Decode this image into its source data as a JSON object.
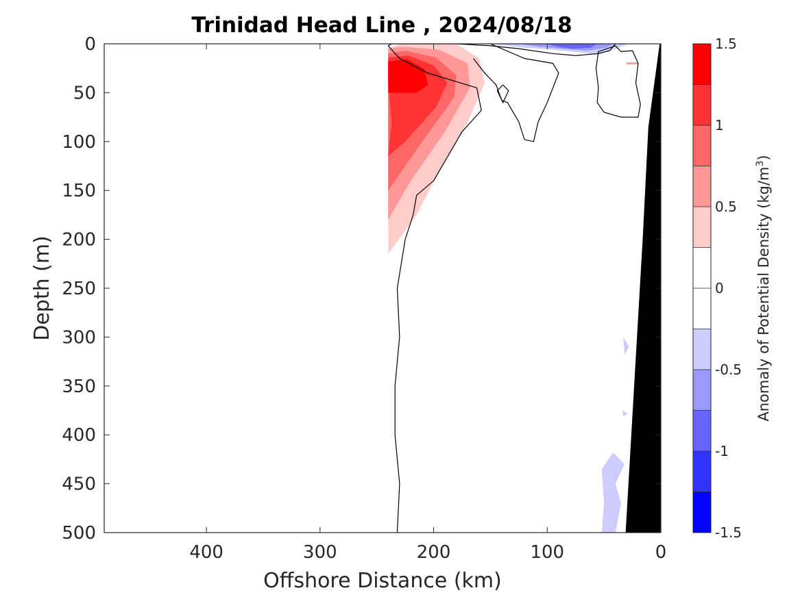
{
  "chart_data": {
    "type": "heatmap",
    "title": "Trinidad Head Line , 2024/08/18",
    "xlabel": "Offshore Distance (km)",
    "ylabel": "Depth (m)",
    "xlim": [
      490,
      0
    ],
    "ylim": [
      0,
      500
    ],
    "x_ticks": [
      400,
      300,
      200,
      100,
      0
    ],
    "y_ticks": [
      0,
      50,
      100,
      150,
      200,
      250,
      300,
      350,
      400,
      450,
      500
    ],
    "colorbar": {
      "label": "Anomaly of Potential Density (kg/m",
      "label_superscript": "3",
      "label_suffix": ")",
      "range": [
        -1.5,
        1.5
      ],
      "ticks": [
        -1.5,
        -1,
        -0.5,
        0,
        0.5,
        1,
        1.5
      ],
      "levels": [
        {
          "from": 1.25,
          "to": 1.5,
          "color": "#ff0000"
        },
        {
          "from": 1.0,
          "to": 1.25,
          "color": "#ff3333"
        },
        {
          "from": 0.75,
          "to": 1.0,
          "color": "#ff6666"
        },
        {
          "from": 0.5,
          "to": 0.75,
          "color": "#ff9999"
        },
        {
          "from": 0.25,
          "to": 0.5,
          "color": "#ffcccc"
        },
        {
          "from": 0.0,
          "to": 0.25,
          "color": "#ffffff"
        },
        {
          "from": -0.25,
          "to": 0.0,
          "color": "#ffffff"
        },
        {
          "from": -0.5,
          "to": -0.25,
          "color": "#ccccff"
        },
        {
          "from": -0.75,
          "to": -0.5,
          "color": "#9999ff"
        },
        {
          "from": -1.0,
          "to": -0.75,
          "color": "#6666ff"
        },
        {
          "from": -1.25,
          "to": -1.0,
          "color": "#3333ff"
        },
        {
          "from": -1.5,
          "to": -1.25,
          "color": "#0000ff"
        }
      ]
    },
    "contour_regions": [
      {
        "name": "positive-anomaly-0.25",
        "level": 0.375,
        "color": "#ffcccc",
        "points": [
          [
            240,
            5
          ],
          [
            230,
            0
          ],
          [
            180,
            0
          ],
          [
            160,
            15
          ],
          [
            155,
            40
          ],
          [
            170,
            80
          ],
          [
            195,
            130
          ],
          [
            215,
            175
          ],
          [
            240,
            215
          ]
        ]
      },
      {
        "name": "positive-anomaly-0.50",
        "level": 0.625,
        "color": "#ff9999",
        "points": [
          [
            240,
            5
          ],
          [
            228,
            3
          ],
          [
            195,
            6
          ],
          [
            170,
            20
          ],
          [
            168,
            45
          ],
          [
            190,
            90
          ],
          [
            220,
            140
          ],
          [
            240,
            180
          ]
        ]
      },
      {
        "name": "positive-anomaly-0.75",
        "level": 0.875,
        "color": "#ff6666",
        "points": [
          [
            240,
            10
          ],
          [
            225,
            7
          ],
          [
            198,
            14
          ],
          [
            180,
            32
          ],
          [
            182,
            55
          ],
          [
            210,
            100
          ],
          [
            240,
            150
          ]
        ]
      },
      {
        "name": "positive-anomaly-1.00",
        "level": 1.125,
        "color": "#ff3333",
        "points": [
          [
            240,
            14
          ],
          [
            222,
            12
          ],
          [
            200,
            22
          ],
          [
            188,
            40
          ],
          [
            198,
            65
          ],
          [
            225,
            100
          ],
          [
            240,
            115
          ],
          [
            237,
            80
          ],
          [
            240,
            40
          ]
        ]
      },
      {
        "name": "positive-anomaly-1.25",
        "level": 1.375,
        "color": "#ff0000",
        "points": [
          [
            240,
            18
          ],
          [
            223,
            16
          ],
          [
            208,
            26
          ],
          [
            205,
            42
          ],
          [
            215,
            50
          ],
          [
            232,
            50
          ],
          [
            240,
            50
          ]
        ]
      },
      {
        "name": "negative-anomaly-surface-0.25",
        "level": -0.375,
        "color": "#ccccff",
        "points": [
          [
            150,
            0
          ],
          [
            120,
            4
          ],
          [
            95,
            6
          ],
          [
            70,
            9
          ],
          [
            55,
            11
          ],
          [
            40,
            5
          ],
          [
            28,
            0
          ]
        ]
      },
      {
        "name": "negative-anomaly-surface-0.50",
        "level": -0.625,
        "color": "#9999ff",
        "points": [
          [
            125,
            0
          ],
          [
            108,
            3
          ],
          [
            88,
            5
          ],
          [
            65,
            7
          ],
          [
            48,
            4
          ],
          [
            42,
            0
          ]
        ]
      },
      {
        "name": "negative-anomaly-surface-0.75",
        "level": -0.875,
        "color": "#6666ff",
        "points": [
          [
            100,
            0
          ],
          [
            92,
            3
          ],
          [
            78,
            5
          ],
          [
            62,
            4
          ],
          [
            56,
            0
          ]
        ]
      },
      {
        "name": "negative-anomaly-deep-0.25-a",
        "level": -0.375,
        "color": "#ccccff",
        "points": [
          [
            52,
            500
          ],
          [
            50,
            470
          ],
          [
            52,
            435
          ],
          [
            42,
            418
          ],
          [
            32,
            430
          ],
          [
            40,
            450
          ],
          [
            35,
            470
          ],
          [
            40,
            500
          ]
        ]
      },
      {
        "name": "negative-anomaly-deep-0.25-b",
        "level": -0.375,
        "color": "#ccccff",
        "points": [
          [
            33,
            300
          ],
          [
            28,
            310
          ],
          [
            32,
            318
          ]
        ]
      },
      {
        "name": "negative-anomaly-deep-0.25-c",
        "level": -0.375,
        "color": "#ccccff",
        "points": [
          [
            34,
            375
          ],
          [
            29,
            378
          ],
          [
            33,
            381
          ]
        ]
      },
      {
        "name": "positive-anomaly-nearshore-dot",
        "level": 0.375,
        "color": "#ff9999",
        "points": [
          [
            30,
            19
          ],
          [
            20,
            19
          ],
          [
            20,
            21
          ],
          [
            30,
            21
          ]
        ]
      }
    ],
    "zero_contours": [
      {
        "name": "zero-contour-main",
        "points": [
          [
            240,
            2
          ],
          [
            237,
            0
          ],
          [
            235,
            0
          ],
          [
            180,
            0
          ],
          [
            150,
            2
          ],
          [
            125,
            5
          ],
          [
            95,
            10
          ],
          [
            75,
            12
          ],
          [
            55,
            10
          ],
          [
            45,
            7
          ],
          [
            40,
            0
          ]
        ]
      },
      {
        "name": "zero-contour-offshore",
        "points": [
          [
            240,
            2
          ],
          [
            230,
            15
          ],
          [
            205,
            30
          ],
          [
            162,
            45
          ],
          [
            158,
            68
          ],
          [
            175,
            90
          ],
          [
            190,
            120
          ],
          [
            200,
            140
          ],
          [
            215,
            155
          ],
          [
            218,
            175
          ],
          [
            225,
            200
          ],
          [
            232,
            250
          ],
          [
            230,
            300
          ],
          [
            234,
            350
          ],
          [
            234,
            400
          ],
          [
            230,
            450
          ],
          [
            232,
            500
          ]
        ]
      },
      {
        "name": "zero-contour-eastern-lobe",
        "points": [
          [
            150,
            0
          ],
          [
            120,
            15
          ],
          [
            95,
            20
          ],
          [
            90,
            30
          ],
          [
            100,
            60
          ],
          [
            108,
            80
          ],
          [
            112,
            100
          ],
          [
            120,
            98
          ],
          [
            125,
            80
          ],
          [
            135,
            60
          ],
          [
            140,
            58
          ],
          [
            145,
            42
          ],
          [
            155,
            30
          ],
          [
            165,
            15
          ]
        ]
      },
      {
        "name": "zero-contour-nearshore-loop",
        "points": [
          [
            40,
            2
          ],
          [
            55,
            8
          ],
          [
            57,
            25
          ],
          [
            55,
            45
          ],
          [
            56,
            60
          ],
          [
            50,
            70
          ],
          [
            35,
            75
          ],
          [
            20,
            75
          ],
          [
            18,
            62
          ],
          [
            22,
            40
          ],
          [
            20,
            20
          ],
          [
            25,
            7
          ],
          [
            35,
            8
          ],
          [
            40,
            2
          ]
        ]
      },
      {
        "name": "zero-contour-diamond",
        "points": [
          [
            139,
            42
          ],
          [
            134,
            48
          ],
          [
            139,
            60
          ],
          [
            144,
            48
          ],
          [
            139,
            42
          ]
        ]
      }
    ],
    "seafloor": {
      "color": "#000000",
      "points": [
        [
          0,
          0
        ],
        [
          1,
          0
        ],
        [
          11,
          85
        ],
        [
          16,
          200
        ],
        [
          21,
          300
        ],
        [
          26,
          400
        ],
        [
          31,
          500
        ],
        [
          25,
          500
        ],
        [
          20,
          500
        ],
        [
          14,
          500
        ],
        [
          0,
          500
        ]
      ]
    }
  }
}
